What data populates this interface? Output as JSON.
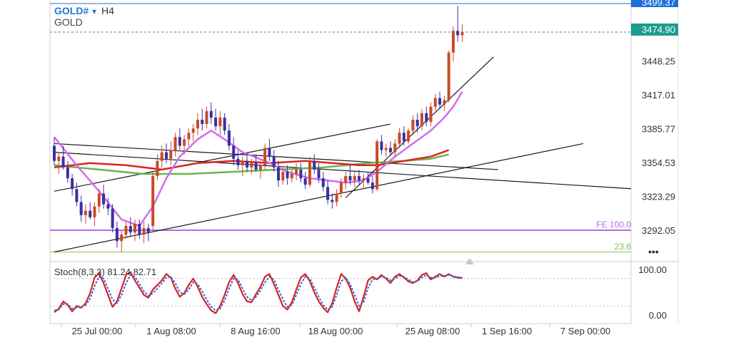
{
  "header": {
    "symbol": "GOLD#",
    "separator": "▾",
    "timeframe": "H4",
    "name": "GOLD",
    "more_glyph": "•••"
  },
  "price_labels": {
    "top_tag": "3499.37",
    "current_tag": "3474.90",
    "fe_label": "FE 100.0",
    "fib_label": "23.6"
  },
  "stoch": {
    "label": "Stoch(8,3,3) 81.24 82.71",
    "ticks": [
      "100.00",
      "0.00"
    ]
  },
  "colors": {
    "bull": "#c94a2a",
    "bear": "#3a2fa6",
    "ma_fast": "#d26bf0",
    "ma_mid": "#d9241f",
    "ma_slow": "#6ab54a",
    "fe_line": "#b46ee6",
    "fib_line": "#a8d58a",
    "current_tag_bg": "#1b9e8f",
    "top_tag_bg": "#1e6fd9"
  },
  "chart_data": {
    "type": "candlestick",
    "symbol": "GOLD#",
    "timeframe": "H4",
    "y_ticks": [
      3448.25,
      3417.01,
      3385.77,
      3354.53,
      3323.29,
      3292.05
    ],
    "ylim": [
      3262,
      3512
    ],
    "x_labels": [
      "25 Jul 00:00",
      "1 Aug 08:00",
      "8 Aug 16:00",
      "18 Aug 00:00",
      "25 Aug 08:00",
      "1 Sep 16:00",
      "7 Sep 00:00"
    ],
    "current_price": 3474.9,
    "high_price": 3499.37,
    "fe_100": 3292.05,
    "fib_23_6": 3272.0,
    "candles": [
      [
        3370,
        3378,
        3352,
        3356
      ],
      [
        3356,
        3364,
        3344,
        3360
      ],
      [
        3360,
        3370,
        3348,
        3350
      ],
      [
        3350,
        3356,
        3336,
        3340
      ],
      [
        3340,
        3344,
        3324,
        3330
      ],
      [
        3330,
        3336,
        3314,
        3318
      ],
      [
        3318,
        3324,
        3300,
        3306
      ],
      [
        3306,
        3316,
        3298,
        3310
      ],
      [
        3310,
        3318,
        3302,
        3304
      ],
      [
        3304,
        3318,
        3296,
        3314
      ],
      [
        3314,
        3330,
        3308,
        3326
      ],
      [
        3326,
        3334,
        3312,
        3316
      ],
      [
        3316,
        3322,
        3306,
        3312
      ],
      [
        3312,
        3316,
        3290,
        3294
      ],
      [
        3294,
        3300,
        3276,
        3282
      ],
      [
        3282,
        3292,
        3272,
        3288
      ],
      [
        3288,
        3300,
        3284,
        3296
      ],
      [
        3296,
        3304,
        3286,
        3290
      ],
      [
        3290,
        3302,
        3282,
        3298
      ],
      [
        3298,
        3302,
        3284,
        3288
      ],
      [
        3288,
        3300,
        3280,
        3294
      ],
      [
        3294,
        3298,
        3282,
        3290
      ],
      [
        3296,
        3346,
        3292,
        3342
      ],
      [
        3342,
        3362,
        3338,
        3356
      ],
      [
        3356,
        3370,
        3350,
        3364
      ],
      [
        3364,
        3372,
        3354,
        3358
      ],
      [
        3358,
        3374,
        3352,
        3366
      ],
      [
        3366,
        3382,
        3360,
        3378
      ],
      [
        3378,
        3386,
        3366,
        3370
      ],
      [
        3370,
        3380,
        3362,
        3376
      ],
      [
        3376,
        3386,
        3370,
        3382
      ],
      [
        3382,
        3390,
        3374,
        3386
      ],
      [
        3386,
        3400,
        3380,
        3394
      ],
      [
        3394,
        3404,
        3384,
        3390
      ],
      [
        3390,
        3406,
        3386,
        3402
      ],
      [
        3402,
        3410,
        3390,
        3396
      ],
      [
        3396,
        3404,
        3384,
        3388
      ],
      [
        3388,
        3402,
        3380,
        3396
      ],
      [
        3396,
        3400,
        3380,
        3384
      ],
      [
        3384,
        3390,
        3366,
        3370
      ],
      [
        3370,
        3378,
        3352,
        3358
      ],
      [
        3358,
        3366,
        3348,
        3352
      ],
      [
        3352,
        3360,
        3342,
        3356
      ],
      [
        3356,
        3364,
        3346,
        3350
      ],
      [
        3350,
        3358,
        3344,
        3354
      ],
      [
        3354,
        3362,
        3346,
        3348
      ],
      [
        3348,
        3356,
        3340,
        3352
      ],
      [
        3352,
        3372,
        3348,
        3368
      ],
      [
        3368,
        3376,
        3356,
        3360
      ],
      [
        3360,
        3366,
        3346,
        3350
      ],
      [
        3350,
        3356,
        3332,
        3338
      ],
      [
        3338,
        3350,
        3334,
        3346
      ],
      [
        3346,
        3352,
        3334,
        3340
      ],
      [
        3340,
        3348,
        3336,
        3344
      ],
      [
        3344,
        3354,
        3338,
        3348
      ],
      [
        3348,
        3354,
        3336,
        3340
      ],
      [
        3340,
        3346,
        3330,
        3334
      ],
      [
        3334,
        3360,
        3332,
        3356
      ],
      [
        3356,
        3362,
        3344,
        3348
      ],
      [
        3348,
        3354,
        3336,
        3340
      ],
      [
        3340,
        3346,
        3328,
        3332
      ],
      [
        3332,
        3338,
        3316,
        3320
      ],
      [
        3320,
        3326,
        3312,
        3318
      ],
      [
        3318,
        3330,
        3314,
        3326
      ],
      [
        3326,
        3340,
        3322,
        3336
      ],
      [
        3336,
        3346,
        3330,
        3342
      ],
      [
        3342,
        3352,
        3334,
        3338
      ],
      [
        3338,
        3346,
        3332,
        3342
      ],
      [
        3342,
        3348,
        3334,
        3338
      ],
      [
        3338,
        3344,
        3330,
        3340
      ],
      [
        3340,
        3346,
        3334,
        3336
      ],
      [
        3336,
        3342,
        3326,
        3330
      ],
      [
        3330,
        3376,
        3328,
        3374
      ],
      [
        3374,
        3380,
        3362,
        3366
      ],
      [
        3366,
        3372,
        3360,
        3368
      ],
      [
        3368,
        3374,
        3362,
        3364
      ],
      [
        3364,
        3376,
        3360,
        3372
      ],
      [
        3372,
        3386,
        3368,
        3382
      ],
      [
        3382,
        3388,
        3370,
        3374
      ],
      [
        3374,
        3386,
        3372,
        3384
      ],
      [
        3384,
        3398,
        3380,
        3394
      ],
      [
        3394,
        3400,
        3382,
        3388
      ],
      [
        3388,
        3404,
        3384,
        3400
      ],
      [
        3400,
        3406,
        3388,
        3392
      ],
      [
        3392,
        3410,
        3388,
        3406
      ],
      [
        3406,
        3418,
        3402,
        3414
      ],
      [
        3414,
        3420,
        3404,
        3408
      ],
      [
        3408,
        3416,
        3402,
        3412
      ],
      [
        3412,
        3458,
        3410,
        3456
      ],
      [
        3456,
        3480,
        3448,
        3476
      ],
      [
        3476,
        3499,
        3466,
        3472
      ],
      [
        3472,
        3482,
        3466,
        3474.9
      ]
    ],
    "ma_fast": [
      [
        0,
        3378
      ],
      [
        5,
        3352
      ],
      [
        10,
        3328
      ],
      [
        15,
        3302
      ],
      [
        19,
        3296
      ],
      [
        22,
        3314
      ],
      [
        25,
        3340
      ],
      [
        28,
        3360
      ],
      [
        32,
        3376
      ],
      [
        35,
        3384
      ],
      [
        38,
        3376
      ],
      [
        42,
        3364
      ],
      [
        47,
        3356
      ],
      [
        52,
        3346
      ],
      [
        57,
        3340
      ],
      [
        61,
        3338
      ],
      [
        65,
        3336
      ],
      [
        69,
        3338
      ],
      [
        72,
        3346
      ],
      [
        76,
        3360
      ],
      [
        80,
        3372
      ],
      [
        84,
        3384
      ],
      [
        87,
        3396
      ],
      [
        89,
        3406
      ],
      [
        91,
        3420
      ]
    ],
    "ma_mid": [
      [
        0,
        3350
      ],
      [
        8,
        3354
      ],
      [
        16,
        3352
      ],
      [
        24,
        3348
      ],
      [
        32,
        3354
      ],
      [
        40,
        3356
      ],
      [
        48,
        3354
      ],
      [
        56,
        3356
      ],
      [
        62,
        3354
      ],
      [
        68,
        3352
      ],
      [
        72,
        3352
      ],
      [
        78,
        3356
      ],
      [
        84,
        3360
      ],
      [
        88,
        3366
      ]
    ],
    "ma_slow": [
      [
        0,
        3352
      ],
      [
        10,
        3348
      ],
      [
        20,
        3344
      ],
      [
        30,
        3344
      ],
      [
        40,
        3346
      ],
      [
        50,
        3348
      ],
      [
        60,
        3350
      ],
      [
        70,
        3354
      ],
      [
        78,
        3356
      ],
      [
        84,
        3358
      ],
      [
        88,
        3362
      ]
    ],
    "trendlines": [
      [
        [
          0,
          3328
        ],
        [
          75,
          3390
        ]
      ],
      [
        [
          0,
          3364
        ],
        [
          130,
          3330
        ]
      ],
      [
        [
          0,
          3372
        ],
        [
          99,
          3348
        ]
      ],
      [
        [
          0,
          3272
        ],
        [
          118,
          3372
        ]
      ],
      [
        [
          65,
          3322
        ],
        [
          98,
          3452
        ]
      ]
    ],
    "stoch_k": [
      6,
      14,
      30,
      22,
      8,
      20,
      16,
      26,
      48,
      82,
      92,
      70,
      44,
      18,
      30,
      58,
      88,
      94,
      76,
      60,
      44,
      38,
      56,
      66,
      76,
      90,
      82,
      58,
      40,
      48,
      66,
      80,
      62,
      40,
      24,
      10,
      4,
      20,
      44,
      72,
      88,
      70,
      46,
      30,
      28,
      46,
      62,
      84,
      90,
      68,
      44,
      20,
      12,
      28,
      56,
      82,
      90,
      74,
      50,
      30,
      16,
      6,
      26,
      60,
      90,
      80,
      60,
      30,
      8,
      40,
      76,
      84,
      78,
      88,
      80,
      70,
      84,
      90,
      82,
      74,
      70,
      76,
      88,
      92,
      78,
      84,
      90,
      84,
      90,
      84,
      82,
      81
    ],
    "stoch_d": [
      10,
      12,
      24,
      24,
      14,
      16,
      18,
      22,
      36,
      64,
      84,
      80,
      58,
      34,
      26,
      44,
      70,
      88,
      84,
      68,
      52,
      42,
      48,
      58,
      70,
      82,
      84,
      70,
      50,
      46,
      56,
      72,
      68,
      52,
      34,
      18,
      10,
      14,
      32,
      58,
      80,
      78,
      58,
      40,
      32,
      40,
      54,
      72,
      84,
      78,
      56,
      34,
      18,
      22,
      44,
      68,
      84,
      80,
      60,
      40,
      22,
      12,
      18,
      44,
      74,
      82,
      68,
      44,
      20,
      28,
      60,
      78,
      80,
      84,
      82,
      76,
      80,
      86,
      84,
      78,
      72,
      74,
      82,
      88,
      82,
      82,
      86,
      86,
      88,
      85,
      83,
      82.71
    ]
  }
}
